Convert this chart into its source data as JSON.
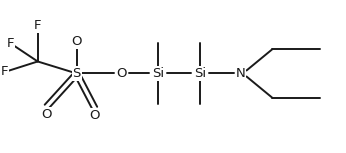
{
  "bg_color": "#ffffff",
  "line_color": "#1a1a1a",
  "line_width": 1.4,
  "font_size": 9.5,
  "font_family": "DejaVu Sans",
  "figsize": [
    3.46,
    1.53
  ],
  "dpi": 100,
  "xlim": [
    0,
    1.0
  ],
  "ylim": [
    0.0,
    1.0
  ]
}
